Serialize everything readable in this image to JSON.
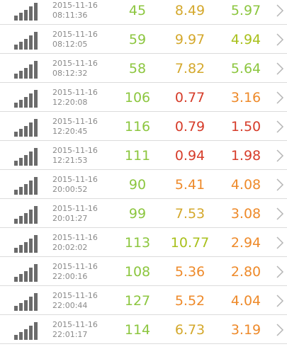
{
  "colors": {
    "green": "#8cc63f",
    "yellow": "#d4a82c",
    "orange": "#ee8a2a",
    "red": "#d63c2a",
    "yellowgreen": "#a9c01c"
  },
  "rows": [
    {
      "date": "2015-11-16",
      "time": "08:11:36",
      "v1": "45",
      "v2": "8.49",
      "v3": "5.97",
      "c1": "#8cc63f",
      "c2": "#d4a82c",
      "c3": "#8cc63f"
    },
    {
      "date": "2015-11-16",
      "time": "08:12:05",
      "v1": "59",
      "v2": "9.97",
      "v3": "4.94",
      "c1": "#8cc63f",
      "c2": "#d4a82c",
      "c3": "#a9c01c"
    },
    {
      "date": "2015-11-16",
      "time": "08:12:32",
      "v1": "58",
      "v2": "7.82",
      "v3": "5.64",
      "c1": "#8cc63f",
      "c2": "#d4a82c",
      "c3": "#8cc63f"
    },
    {
      "date": "2015-11-16",
      "time": "12:20:08",
      "v1": "106",
      "v2": "0.77",
      "v3": "3.16",
      "c1": "#8cc63f",
      "c2": "#d63c2a",
      "c3": "#ee8a2a"
    },
    {
      "date": "2015-11-16",
      "time": "12:20:45",
      "v1": "116",
      "v2": "0.79",
      "v3": "1.50",
      "c1": "#8cc63f",
      "c2": "#d63c2a",
      "c3": "#d63c2a"
    },
    {
      "date": "2015-11-16",
      "time": "12:21:53",
      "v1": "111",
      "v2": "0.94",
      "v3": "1.98",
      "c1": "#8cc63f",
      "c2": "#d63c2a",
      "c3": "#d63c2a"
    },
    {
      "date": "2015-11-16",
      "time": "20:00:52",
      "v1": "90",
      "v2": "5.41",
      "v3": "4.08",
      "c1": "#8cc63f",
      "c2": "#ee8a2a",
      "c3": "#ee8a2a"
    },
    {
      "date": "2015-11-16",
      "time": "20:01:27",
      "v1": "99",
      "v2": "7.53",
      "v3": "3.08",
      "c1": "#8cc63f",
      "c2": "#d4a82c",
      "c3": "#ee8a2a"
    },
    {
      "date": "2015-11-16",
      "time": "20:02:02",
      "v1": "113",
      "v2": "10.77",
      "v3": "2.94",
      "c1": "#8cc63f",
      "c2": "#a9c01c",
      "c3": "#ee8a2a"
    },
    {
      "date": "2015-11-16",
      "time": "22:00:16",
      "v1": "108",
      "v2": "5.36",
      "v3": "2.80",
      "c1": "#8cc63f",
      "c2": "#ee8a2a",
      "c3": "#ee8a2a"
    },
    {
      "date": "2015-11-16",
      "time": "22:00:44",
      "v1": "127",
      "v2": "5.52",
      "v3": "4.04",
      "c1": "#8cc63f",
      "c2": "#ee8a2a",
      "c3": "#ee8a2a"
    },
    {
      "date": "2015-11-16",
      "time": "22:01:17",
      "v1": "114",
      "v2": "6.73",
      "v3": "3.19",
      "c1": "#8cc63f",
      "c2": "#d4a82c",
      "c3": "#ee8a2a"
    }
  ],
  "icons": {
    "signal": "signal-strength-icon",
    "chevron": "chevron-right-icon"
  }
}
